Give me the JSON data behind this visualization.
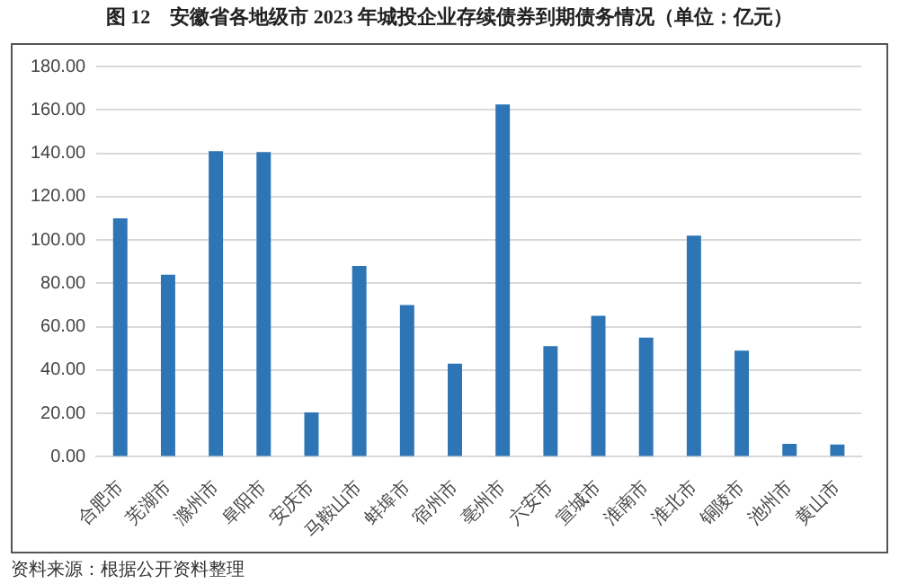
{
  "chart_data": {
    "type": "bar",
    "title": "图 12　安徽省各地级市 2023 年城投企业存续债券到期债务情况（单位：亿元）",
    "categories": [
      "合肥市",
      "芜湖市",
      "滁州市",
      "阜阳市",
      "安庆市",
      "马鞍山市",
      "蚌埠市",
      "宿州市",
      "亳州市",
      "六安市",
      "宣城市",
      "淮南市",
      "淮北市",
      "铜陵市",
      "池州市",
      "黄山市"
    ],
    "values": [
      110,
      84,
      141,
      140.5,
      20.5,
      88,
      70,
      43,
      162.5,
      51,
      65,
      55,
      102,
      49,
      6,
      5.7
    ],
    "color": "#2e75b6",
    "ylim": [
      0,
      180
    ],
    "yticks": [
      {
        "value": 0,
        "label": "0.00"
      },
      {
        "value": 20,
        "label": "20.00"
      },
      {
        "value": 40,
        "label": "40.00"
      },
      {
        "value": 60,
        "label": "60.00"
      },
      {
        "value": 80,
        "label": "80.00"
      },
      {
        "value": 100,
        "label": "100.00"
      },
      {
        "value": 120,
        "label": "120.00"
      },
      {
        "value": 140,
        "label": "140.00"
      },
      {
        "value": 160,
        "label": "160.00"
      },
      {
        "value": 180,
        "label": "180.00"
      }
    ],
    "grid": "y",
    "annotations": [
      "资料来源：根据公开资料整理"
    ]
  }
}
